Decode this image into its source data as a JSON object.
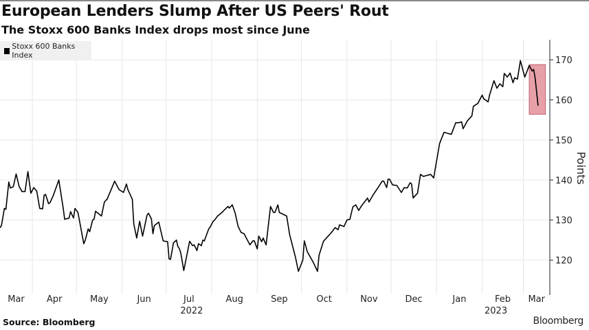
{
  "title": "European Lenders Slump After US Peers' Rout",
  "subtitle": "The Stoxx 600 Banks Index drops most since June",
  "source": "Source: Bloomberg",
  "logo": "Bloomberg",
  "chart_data": {
    "type": "line",
    "title": "European Lenders Slump After US Peers' Rout",
    "subtitle": "The Stoxx 600 Banks Index drops most since June",
    "ylabel": "Points",
    "xlabel": "",
    "ylim": [
      113,
      175
    ],
    "xlim": [
      "2022-03-10",
      "2023-03-19"
    ],
    "yticks": [
      120,
      130,
      140,
      150,
      160,
      170
    ],
    "xtick_labels": [
      "Mar",
      "Apr",
      "May",
      "Jun",
      "Jul",
      "Aug",
      "Sep",
      "Oct",
      "Nov",
      "Dec",
      "Jan",
      "Feb",
      "Mar"
    ],
    "year_labels": [
      "2022",
      "2023"
    ],
    "grid": true,
    "legend_placement": "top-left",
    "y_axis_side": "right",
    "line_color": "#000000",
    "highlight": {
      "from": "2023-03-05",
      "to": "2023-03-16",
      "ymin": 156.4,
      "ymax": 168.8,
      "color": "#e8a0a8"
    },
    "series": [
      {
        "name": "Stoxx 600 Banks Index",
        "points": [
          [
            "2022-03-10",
            128.1
          ],
          [
            "2022-03-11",
            128.6
          ],
          [
            "2022-03-13",
            132.9
          ],
          [
            "2022-03-14",
            132.7
          ],
          [
            "2022-03-16",
            139.5
          ],
          [
            "2022-03-17",
            138
          ],
          [
            "2022-03-19",
            138.3
          ],
          [
            "2022-03-21",
            141.5
          ],
          [
            "2022-03-23",
            138.4
          ],
          [
            "2022-03-25",
            137.1
          ],
          [
            "2022-03-27",
            137.1
          ],
          [
            "2022-03-29",
            142.1
          ],
          [
            "2022-03-31",
            136.7
          ],
          [
            "2022-04-02",
            138.1
          ],
          [
            "2022-04-04",
            137.2
          ],
          [
            "2022-04-06",
            132.9
          ],
          [
            "2022-04-08",
            132.8
          ],
          [
            "2022-04-09",
            136.2
          ],
          [
            "2022-04-10",
            136.4
          ],
          [
            "2022-04-12",
            134.1
          ],
          [
            "2022-04-13",
            134.3
          ],
          [
            "2022-04-15",
            135.9
          ],
          [
            "2022-04-19",
            140
          ],
          [
            "2022-04-22",
            132.9
          ],
          [
            "2022-04-23",
            130.2
          ],
          [
            "2022-04-26",
            130.5
          ],
          [
            "2022-04-27",
            132.1
          ],
          [
            "2022-04-29",
            130.5
          ],
          [
            "2022-04-30",
            132.9
          ],
          [
            "2022-05-02",
            131.9
          ],
          [
            "2022-05-06",
            124.1
          ],
          [
            "2022-05-07",
            125
          ],
          [
            "2022-05-09",
            127.8
          ],
          [
            "2022-05-10",
            127.1
          ],
          [
            "2022-05-12",
            130
          ],
          [
            "2022-05-13",
            130.2
          ],
          [
            "2022-05-14",
            132.2
          ],
          [
            "2022-05-18",
            131
          ],
          [
            "2022-05-20",
            134.5
          ],
          [
            "2022-05-22",
            135.3
          ],
          [
            "2022-05-27",
            139.7
          ],
          [
            "2022-05-30",
            137.6
          ],
          [
            "2022-06-02",
            136.9
          ],
          [
            "2022-06-04",
            139
          ],
          [
            "2022-06-05",
            137.6
          ],
          [
            "2022-06-08",
            135.2
          ],
          [
            "2022-06-09",
            129
          ],
          [
            "2022-06-11",
            125.5
          ],
          [
            "2022-06-13",
            129.7
          ],
          [
            "2022-06-15",
            126
          ],
          [
            "2022-06-18",
            131.2
          ],
          [
            "2022-06-19",
            131.7
          ],
          [
            "2022-06-21",
            130.3
          ],
          [
            "2022-06-22",
            126.6
          ],
          [
            "2022-06-23",
            128.6
          ],
          [
            "2022-06-26",
            129.5
          ],
          [
            "2022-06-29",
            124.8
          ],
          [
            "2022-07-02",
            124.6
          ],
          [
            "2022-07-03",
            120.3
          ],
          [
            "2022-07-04",
            120.2
          ],
          [
            "2022-07-06",
            124.3
          ],
          [
            "2022-07-08",
            125
          ],
          [
            "2022-07-09",
            123.4
          ],
          [
            "2022-07-10",
            122.9
          ],
          [
            "2022-07-11",
            121.7
          ],
          [
            "2022-07-13",
            117.4
          ],
          [
            "2022-07-17",
            124.7
          ],
          [
            "2022-07-19",
            123.6
          ],
          [
            "2022-07-20",
            123.8
          ],
          [
            "2022-07-22",
            122.4
          ],
          [
            "2022-07-23",
            124.1
          ],
          [
            "2022-07-25",
            123.6
          ],
          [
            "2022-07-26",
            125
          ],
          [
            "2022-07-27",
            124.8
          ],
          [
            "2022-07-30",
            127.8
          ],
          [
            "2022-07-31",
            128.3
          ],
          [
            "2022-08-02",
            129.7
          ],
          [
            "2022-08-03",
            130
          ],
          [
            "2022-08-05",
            131
          ],
          [
            "2022-08-08",
            131.9
          ],
          [
            "2022-08-12",
            133.4
          ],
          [
            "2022-08-13",
            133
          ],
          [
            "2022-08-15",
            133.8
          ],
          [
            "2022-08-17",
            131.7
          ],
          [
            "2022-08-19",
            128.4
          ],
          [
            "2022-08-21",
            126.9
          ],
          [
            "2022-08-23",
            126.6
          ],
          [
            "2022-08-27",
            123.8
          ],
          [
            "2022-08-29",
            124.8
          ],
          [
            "2022-08-30",
            124.8
          ],
          [
            "2022-09-01",
            122.8
          ],
          [
            "2022-09-02",
            126
          ],
          [
            "2022-09-04",
            124.6
          ],
          [
            "2022-09-05",
            125.5
          ],
          [
            "2022-09-07",
            123.8
          ],
          [
            "2022-09-10",
            133.4
          ],
          [
            "2022-09-12",
            131.9
          ],
          [
            "2022-09-13",
            131.9
          ],
          [
            "2022-09-15",
            133.8
          ],
          [
            "2022-09-16",
            131.9
          ],
          [
            "2022-09-21",
            131
          ],
          [
            "2022-09-23",
            126.4
          ],
          [
            "2022-09-27",
            120.7
          ],
          [
            "2022-09-29",
            117.2
          ],
          [
            "2022-10-02",
            120
          ],
          [
            "2022-10-03",
            124.8
          ],
          [
            "2022-10-05",
            122.1
          ],
          [
            "2022-10-09",
            119.5
          ],
          [
            "2022-10-12",
            117.2
          ],
          [
            "2022-10-13",
            121.2
          ],
          [
            "2022-10-16",
            124.7
          ],
          [
            "2022-10-19",
            125.9
          ],
          [
            "2022-10-21",
            126.7
          ],
          [
            "2022-10-24",
            128.1
          ],
          [
            "2022-10-26",
            127.6
          ],
          [
            "2022-10-27",
            128.8
          ],
          [
            "2022-10-30",
            128.4
          ],
          [
            "2022-11-01",
            130
          ],
          [
            "2022-11-03",
            130.2
          ],
          [
            "2022-11-05",
            133.3
          ],
          [
            "2022-11-07",
            133.8
          ],
          [
            "2022-11-09",
            132.4
          ],
          [
            "2022-11-11",
            133.6
          ],
          [
            "2022-11-15",
            135.5
          ],
          [
            "2022-11-16",
            134.5
          ],
          [
            "2022-11-19",
            136.4
          ],
          [
            "2022-11-22",
            138
          ],
          [
            "2022-11-25",
            139.7
          ],
          [
            "2022-11-26",
            139.7
          ],
          [
            "2022-11-28",
            138.1
          ],
          [
            "2022-11-29",
            140.2
          ],
          [
            "2022-11-30",
            140.2
          ],
          [
            "2022-12-02",
            138.8
          ],
          [
            "2022-12-05",
            138.6
          ],
          [
            "2022-12-08",
            136.9
          ],
          [
            "2022-12-10",
            138.1
          ],
          [
            "2022-12-12",
            138
          ],
          [
            "2022-12-14",
            139.3
          ],
          [
            "2022-12-15",
            139
          ],
          [
            "2022-12-16",
            135.5
          ],
          [
            "2022-12-19",
            136.7
          ],
          [
            "2022-12-21",
            141.4
          ],
          [
            "2022-12-23",
            140.9
          ],
          [
            "2022-12-28",
            141.4
          ],
          [
            "2022-12-30",
            140.5
          ],
          [
            "2023-01-03",
            149.1
          ],
          [
            "2023-01-06",
            151.9
          ],
          [
            "2023-01-09",
            151.6
          ],
          [
            "2023-01-11",
            151.4
          ],
          [
            "2023-01-14",
            154.3
          ],
          [
            "2023-01-16",
            154.3
          ],
          [
            "2023-01-18",
            154.5
          ],
          [
            "2023-01-19",
            152.8
          ],
          [
            "2023-01-22",
            154.8
          ],
          [
            "2023-01-25",
            156
          ],
          [
            "2023-01-26",
            158.4
          ],
          [
            "2023-01-29",
            159.1
          ],
          [
            "2023-02-01",
            161.2
          ],
          [
            "2023-02-02",
            160.3
          ],
          [
            "2023-02-05",
            159.5
          ],
          [
            "2023-02-06",
            161.2
          ],
          [
            "2023-02-09",
            164.8
          ],
          [
            "2023-02-11",
            162.9
          ],
          [
            "2023-02-13",
            164
          ],
          [
            "2023-02-15",
            163.3
          ],
          [
            "2023-02-16",
            166.6
          ],
          [
            "2023-02-18",
            165.7
          ],
          [
            "2023-02-20",
            166.7
          ],
          [
            "2023-02-22",
            164.3
          ],
          [
            "2023-02-23",
            165.5
          ],
          [
            "2023-02-25",
            165.2
          ],
          [
            "2023-02-27",
            169.8
          ],
          [
            "2023-03-02",
            165.7
          ],
          [
            "2023-03-05",
            168.6
          ],
          [
            "2023-03-07",
            167.2
          ],
          [
            "2023-03-08",
            167.6
          ],
          [
            "2023-03-09",
            165.5
          ],
          [
            "2023-03-11",
            158.6
          ]
        ]
      }
    ]
  }
}
